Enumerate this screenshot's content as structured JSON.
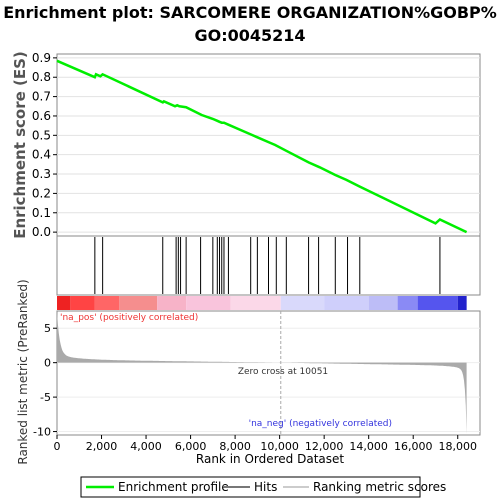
{
  "title_line1": "Enrichment plot: SARCOMERE ORGANIZATION%GOBP%",
  "title_line2": "GO:0045214",
  "chart_data": {
    "type": "line",
    "panels": {
      "enrichment": {
        "ylabel": "Enrichment score (ES)",
        "ylim": [
          -0.02,
          0.92
        ],
        "yticks": [
          "0.0",
          "0.1",
          "0.2",
          "0.3",
          "0.4",
          "0.5",
          "0.6",
          "0.7",
          "0.8",
          "0.9"
        ],
        "series": [
          {
            "name": "Enrichment profile",
            "color": "#00ee00",
            "x": [
              0,
              1700,
              1750,
              1950,
              2050,
              4750,
              4800,
              5300,
              5400,
              5500,
              5800,
              6500,
              7000,
              7200,
              7300,
              7400,
              7500,
              7700,
              8700,
              9000,
              9500,
              9800,
              10300,
              11300,
              11800,
              12500,
              13000,
              13600,
              17000,
              17200,
              18400
            ],
            "y": [
              0.885,
              0.8,
              0.815,
              0.805,
              0.815,
              0.67,
              0.675,
              0.65,
              0.655,
              0.65,
              0.645,
              0.605,
              0.585,
              0.575,
              0.57,
              0.565,
              0.565,
              0.555,
              0.505,
              0.49,
              0.465,
              0.45,
              0.42,
              0.36,
              0.335,
              0.295,
              0.27,
              0.235,
              0.045,
              0.065,
              0.0
            ]
          }
        ]
      },
      "hits": {
        "name": "Hits",
        "positions": [
          1700,
          2050,
          4750,
          5350,
          5450,
          5550,
          5800,
          6450,
          7000,
          7200,
          7300,
          7400,
          7500,
          7700,
          8700,
          9000,
          9500,
          9850,
          10300,
          11300,
          11750,
          12500,
          13050,
          13600,
          17200
        ]
      },
      "ranked": {
        "name": "Ranking metric scores",
        "ylabel": "Ranked list metric (PreRanked)",
        "ylim": [
          -10.5,
          7.5
        ],
        "yticks": [
          "5",
          "0",
          "-5",
          "-10"
        ],
        "zero_cross_label": "Zero cross at 10051",
        "zero_cross_x": 10051,
        "pos_label": "'na_pos' (positively correlated)",
        "neg_label": "'na_neg' (negatively correlated)"
      }
    },
    "xlabel": "Rank in Ordered Dataset",
    "xlim": [
      0,
      19000
    ],
    "xticks": [
      "0",
      "2,000",
      "4,000",
      "6,000",
      "8,000",
      "10,000",
      "12,000",
      "14,000",
      "16,000",
      "18,000"
    ],
    "xtick_values": [
      0,
      2000,
      4000,
      6000,
      8000,
      10000,
      12000,
      14000,
      16000,
      18000
    ],
    "n_genes": 18400,
    "colors": {
      "enrichment_line": "#00ee00",
      "pos_label": "#ee3333",
      "neg_label": "#3333dd",
      "metric_fill": "#aaaaaa"
    }
  },
  "legend": {
    "items": [
      "Enrichment profile",
      "Hits",
      "Ranking metric scores"
    ]
  }
}
